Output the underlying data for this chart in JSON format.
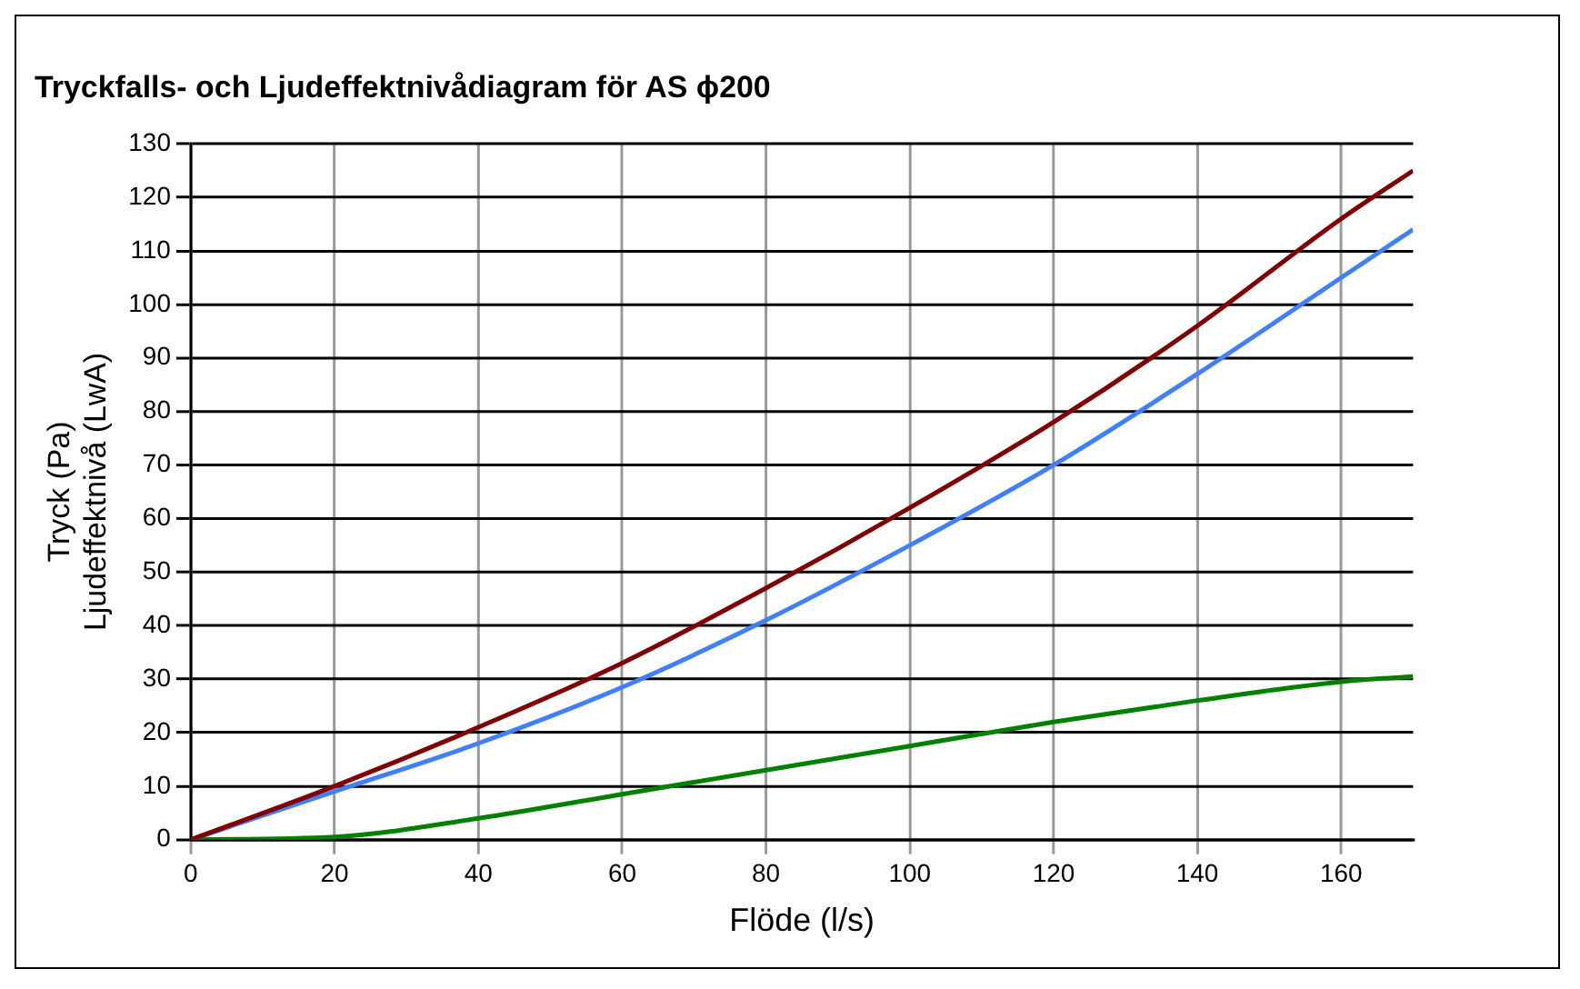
{
  "chart_data": {
    "type": "line",
    "title": "Tryckfalls- och Ljudeffektnivådiagram för AS ϕ200",
    "xlabel": "Flöde (l/s)",
    "ylabel": "Tryck (Pa)\nLjudeffektnivå (LwA)",
    "x": [
      0,
      20,
      40,
      60,
      80,
      100,
      120,
      140,
      160,
      170
    ],
    "series": [
      {
        "color": "#800000",
        "values": [
          0,
          10,
          21,
          33,
          47,
          62,
          78,
          96,
          116,
          125
        ]
      },
      {
        "color": "#4080ff",
        "values": [
          0,
          9,
          18,
          28.5,
          41,
          55,
          70,
          87,
          105,
          114
        ]
      },
      {
        "color": "#008000",
        "values": [
          0,
          0.5,
          4,
          8.5,
          13,
          17.5,
          22,
          26,
          29.5,
          30.5
        ]
      }
    ],
    "xlim": [
      0,
      170
    ],
    "xticks": [
      0,
      20,
      40,
      60,
      80,
      100,
      120,
      140,
      160
    ],
    "ylim": [
      0,
      130
    ],
    "yticks": [
      0,
      10,
      20,
      30,
      40,
      50,
      60,
      70,
      80,
      90,
      100,
      110,
      120,
      130
    ],
    "grid": true,
    "legend": false,
    "marker": "none",
    "line_style": "solid"
  }
}
